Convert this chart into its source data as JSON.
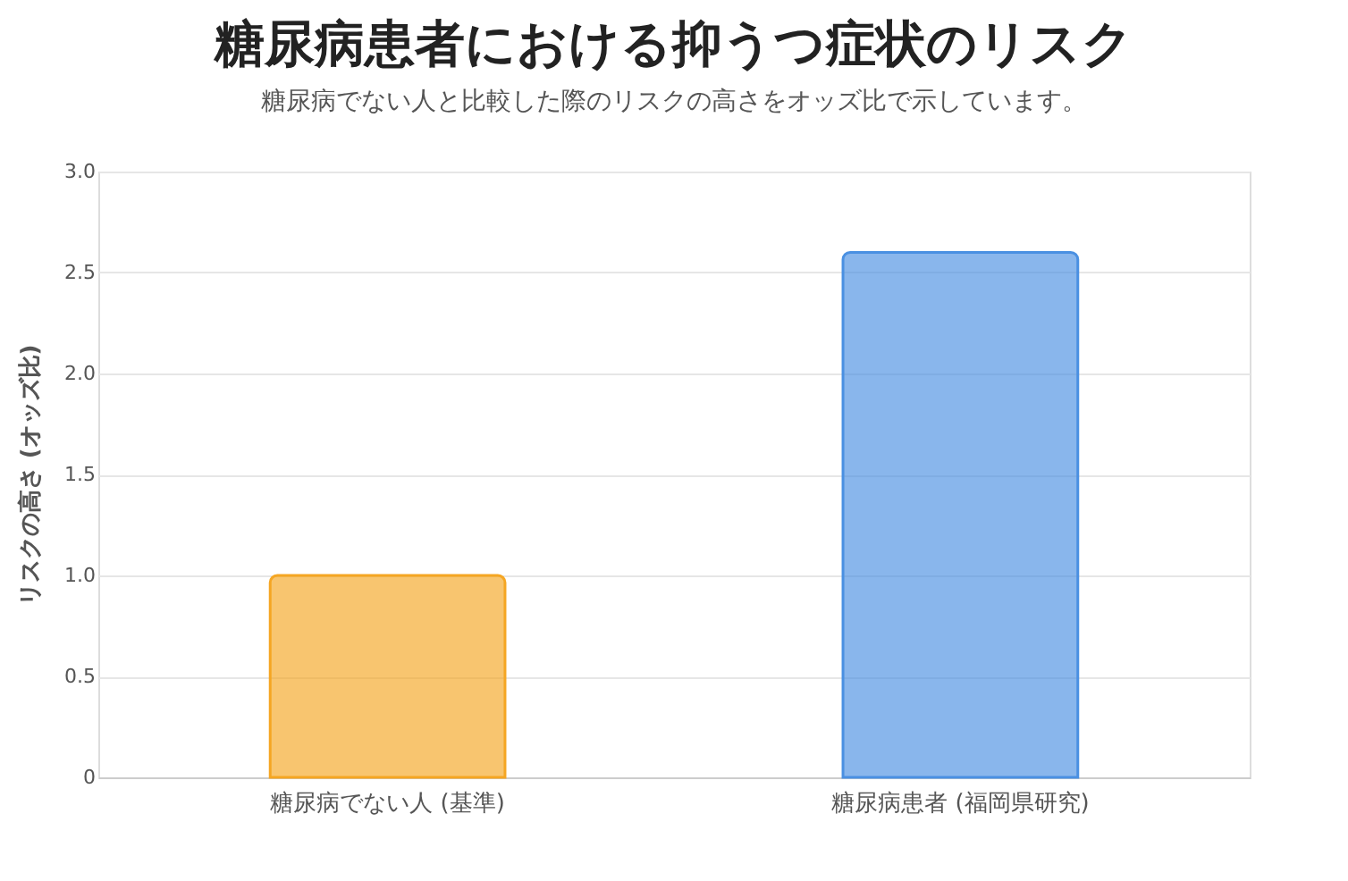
{
  "chart_data": {
    "type": "bar",
    "title": "糖尿病患者における抑うつ症状のリスク",
    "subtitle": "糖尿病でない人と比較した際のリスクの高さをオッズ比で示しています。",
    "ylabel": "リスクの高さ (オッズ比)",
    "categories": [
      "糖尿病でない人 (基準)",
      "糖尿病患者 (福岡県研究)"
    ],
    "values": [
      1.0,
      2.6
    ],
    "colors": [
      "#f5a623",
      "#4a90e2"
    ],
    "ylim": [
      0,
      3
    ],
    "yticks": [
      {
        "value": 0,
        "label": "0"
      },
      {
        "value": 0.5,
        "label": "0.5"
      },
      {
        "value": 1,
        "label": "1.0"
      },
      {
        "value": 1.5,
        "label": "1.5"
      },
      {
        "value": 2,
        "label": "2.0"
      },
      {
        "value": 2.5,
        "label": "2.5"
      },
      {
        "value": 3,
        "label": "3.0"
      }
    ],
    "grid": "y",
    "legend": false
  }
}
